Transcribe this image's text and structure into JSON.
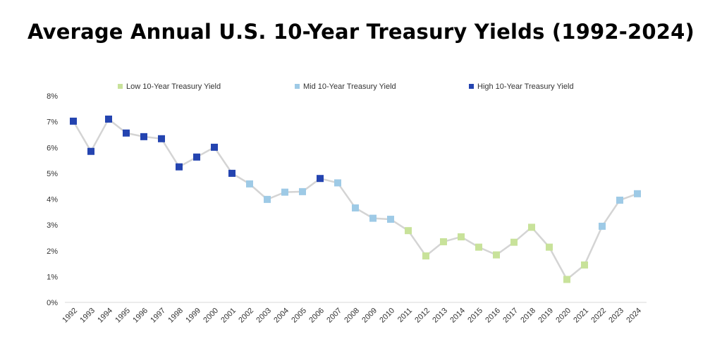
{
  "chart_data": {
    "type": "line",
    "title": "Average Annual U.S. 10-Year Treasury Yields (1992-2024)",
    "xlabel": "",
    "ylabel": "",
    "ylim": [
      0,
      8
    ],
    "yticks": [
      "0%",
      "1%",
      "2%",
      "3%",
      "4%",
      "5%",
      "6%",
      "7%",
      "8%"
    ],
    "grid": false,
    "legend_position": "top",
    "line_color": "#d4d4d4",
    "legend": [
      {
        "key": "low",
        "label": "Low 10-Year Treasury Yield",
        "color": "#c8e29a"
      },
      {
        "key": "mid",
        "label": "Mid 10-Year Treasury Yield",
        "color": "#9ecae6"
      },
      {
        "key": "high",
        "label": "High 10-Year Treasury Yield",
        "color": "#2444b0"
      }
    ],
    "x": [
      "1992",
      "1993",
      "1994",
      "1995",
      "1996",
      "1997",
      "1998",
      "1999",
      "2000",
      "2001",
      "2002",
      "2003",
      "2004",
      "2005",
      "2006",
      "2007",
      "2008",
      "2009",
      "2010",
      "2011",
      "2012",
      "2013",
      "2014",
      "2015",
      "2016",
      "2017",
      "2018",
      "2019",
      "2020",
      "2021",
      "2022",
      "2023",
      "2024"
    ],
    "values": [
      7.02,
      5.85,
      7.1,
      6.56,
      6.42,
      6.34,
      5.25,
      5.63,
      6.01,
      5.0,
      4.59,
      3.99,
      4.27,
      4.29,
      4.8,
      4.63,
      3.66,
      3.26,
      3.22,
      2.78,
      1.8,
      2.35,
      2.54,
      2.14,
      1.84,
      2.33,
      2.91,
      2.14,
      0.89,
      1.45,
      2.95,
      3.96,
      4.21
    ],
    "categories": [
      "high",
      "high",
      "high",
      "high",
      "high",
      "high",
      "high",
      "high",
      "high",
      "high",
      "mid",
      "mid",
      "mid",
      "mid",
      "high",
      "mid",
      "mid",
      "mid",
      "mid",
      "low",
      "low",
      "low",
      "low",
      "low",
      "low",
      "low",
      "low",
      "low",
      "low",
      "low",
      "mid",
      "mid",
      "mid"
    ]
  }
}
